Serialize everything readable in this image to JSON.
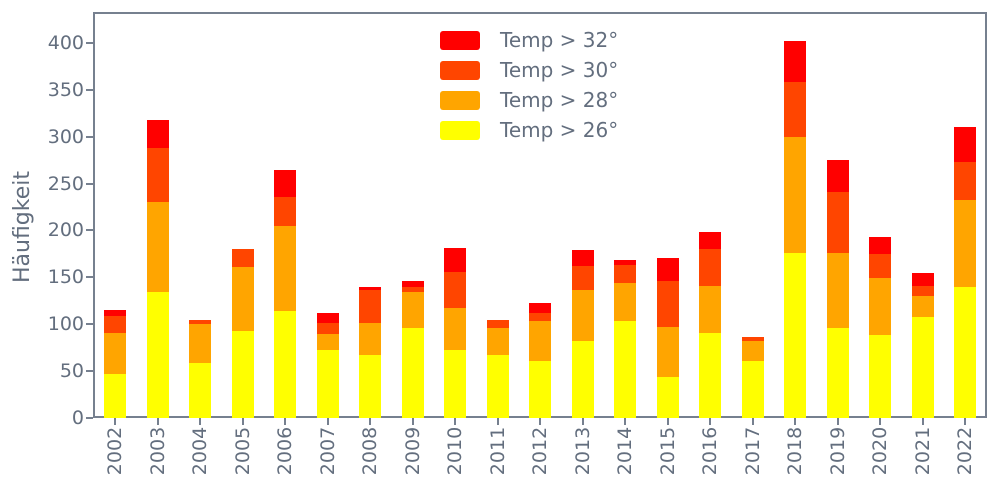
{
  "figure": {
    "ylabel": "Häufigkeit",
    "background_color": "#ffffff",
    "text_color": "#636e7e",
    "spine_color": "#76808f"
  },
  "legend": {
    "position": "upper center",
    "items": [
      {
        "label": "Temp > 32°",
        "color": "#ff0000"
      },
      {
        "label": "Temp > 30°",
        "color": "#ff4500"
      },
      {
        "label": "Temp > 28°",
        "color": "#ffa500"
      },
      {
        "label": "Temp > 26°",
        "color": "#ffff00"
      }
    ]
  },
  "chart_data": {
    "type": "bar",
    "stacked": true,
    "title": "",
    "xlabel": "",
    "ylabel": "Häufigkeit",
    "grid": false,
    "ylim": [
      0,
      433
    ],
    "yticks": [
      0,
      50,
      100,
      150,
      200,
      250,
      300,
      350,
      400
    ],
    "categories": [
      "2002",
      "2003",
      "2004",
      "2005",
      "2006",
      "2007",
      "2008",
      "2009",
      "2010",
      "2011",
      "2012",
      "2013",
      "2014",
      "2015",
      "2016",
      "2017",
      "2018",
      "2019",
      "2020",
      "2021",
      "2022"
    ],
    "series": [
      {
        "name": "Temp > 26°",
        "color": "#ffff00",
        "values": [
          47,
          134,
          59,
          93,
          114,
          72,
          67,
          96,
          72,
          67,
          61,
          82,
          103,
          44,
          91,
          61,
          176,
          96,
          88,
          108,
          140
        ]
      },
      {
        "name": "Temp > 28°",
        "color": "#ffa500",
        "values": [
          44,
          96,
          41,
          68,
          91,
          18,
          34,
          38,
          45,
          29,
          42,
          55,
          41,
          53,
          50,
          21,
          124,
          80,
          61,
          22,
          92
        ]
      },
      {
        "name": "Temp > 30°",
        "color": "#ff4500",
        "values": [
          18,
          58,
          4,
          19,
          31,
          11,
          36,
          6,
          39,
          8,
          9,
          25,
          19,
          49,
          39,
          4,
          58,
          65,
          26,
          11,
          41
        ]
      },
      {
        "name": "Temp > 32°",
        "color": "#ff0000",
        "values": [
          6,
          30,
          0,
          0,
          29,
          11,
          3,
          6,
          25,
          0,
          11,
          17,
          6,
          25,
          18,
          0,
          44,
          34,
          18,
          14,
          37
        ]
      }
    ],
    "stack_totals": [
      115,
      318,
      104,
      180,
      265,
      112,
      140,
      146,
      181,
      104,
      123,
      179,
      169,
      171,
      198,
      86,
      402,
      275,
      193,
      155,
      310
    ]
  }
}
